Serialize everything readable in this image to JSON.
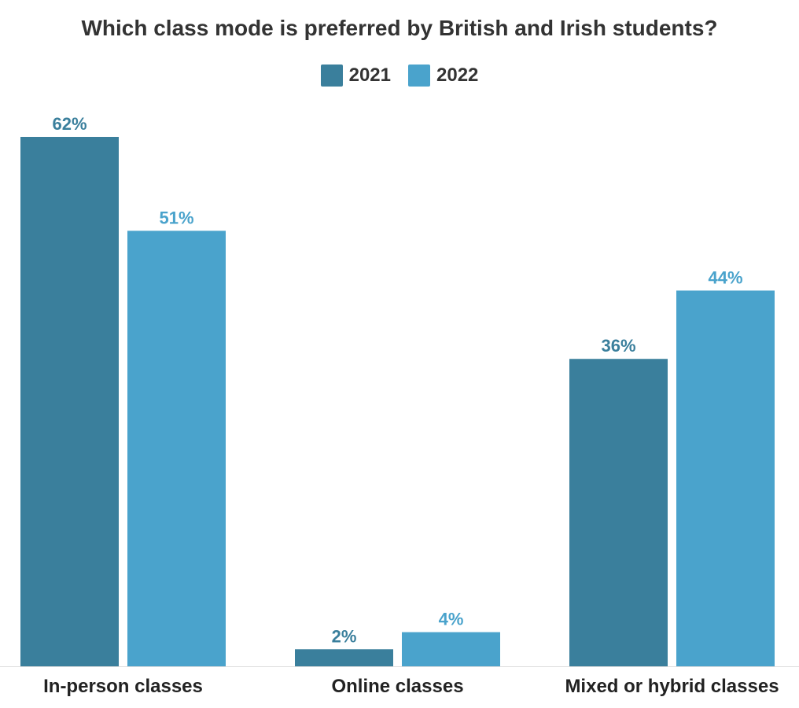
{
  "chart_data": {
    "type": "bar",
    "title": "Which class mode is preferred by British and Irish students?",
    "categories": [
      "In-person classes",
      "Online classes",
      "Mixed or hybrid classes"
    ],
    "series": [
      {
        "name": "2021",
        "color": "#3a7f9c",
        "values": [
          62,
          2,
          36
        ],
        "labels": [
          "62%",
          "2%",
          "36%"
        ]
      },
      {
        "name": "2022",
        "color": "#4aa3cc",
        "values": [
          51,
          4,
          44
        ],
        "labels": [
          "51%",
          "4%",
          "44%"
        ]
      }
    ],
    "ylim": [
      0,
      62
    ],
    "grid": false,
    "legend_position": "top-center"
  }
}
